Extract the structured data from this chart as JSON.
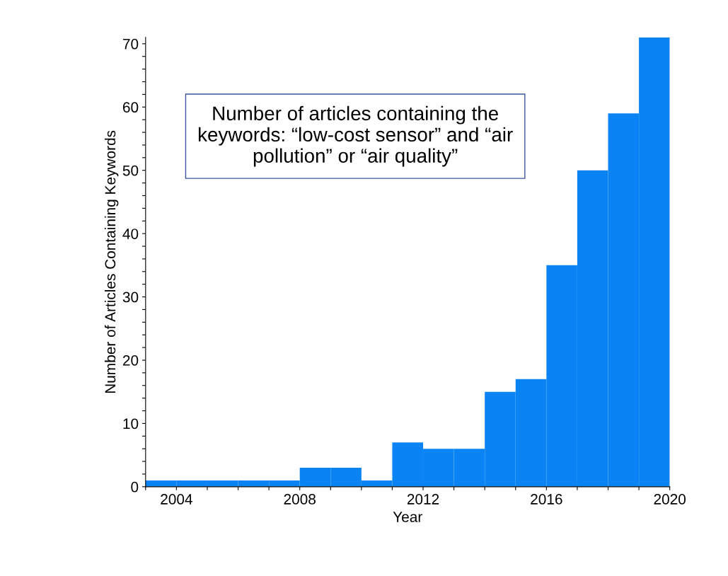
{
  "chart_data": {
    "type": "histogram",
    "bins": [
      2003,
      2004,
      2005,
      2006,
      2007,
      2008,
      2009,
      2010,
      2011,
      2012,
      2013,
      2014,
      2015,
      2016,
      2017,
      2018,
      2019,
      2020
    ],
    "values": [
      1,
      1,
      1,
      1,
      1,
      3,
      3,
      1,
      7,
      6,
      6,
      15,
      17,
      35,
      50,
      59,
      71
    ],
    "color": "#0a84f5",
    "xlabel": "Year",
    "ylabel": "Number of Articles Containing Keywords",
    "xlim": [
      2003,
      2020
    ],
    "ylim": [
      0,
      71
    ],
    "xticks": [
      {
        "value": 2003,
        "label": null
      },
      2004,
      {
        "value": 2005,
        "label": null
      },
      {
        "value": 2006,
        "label": null
      },
      {
        "value": 2007,
        "label": null
      },
      2008,
      {
        "value": 2009,
        "label": null
      },
      {
        "value": 2010,
        "label": null
      },
      {
        "value": 2011,
        "label": null
      },
      2012,
      {
        "value": 2013,
        "label": null
      },
      {
        "value": 2014,
        "label": null
      },
      {
        "value": 2015,
        "label": null
      },
      2016,
      {
        "value": 2017,
        "label": null
      },
      {
        "value": 2018,
        "label": null
      },
      {
        "value": 2019,
        "label": null
      },
      2020
    ],
    "yticks": [
      0,
      {
        "value": 2,
        "label": null
      },
      {
        "value": 4,
        "label": null
      },
      {
        "value": 6,
        "label": null
      },
      {
        "value": 8,
        "label": null
      },
      10,
      {
        "value": 12,
        "label": null
      },
      {
        "value": 14,
        "label": null
      },
      {
        "value": 16,
        "label": null
      },
      {
        "value": 18,
        "label": null
      },
      20,
      {
        "value": 22,
        "label": null
      },
      {
        "value": 24,
        "label": null
      },
      {
        "value": 26,
        "label": null
      },
      {
        "value": 28,
        "label": null
      },
      30,
      {
        "value": 32,
        "label": null
      },
      {
        "value": 34,
        "label": null
      },
      {
        "value": 36,
        "label": null
      },
      {
        "value": 38,
        "label": null
      },
      40,
      {
        "value": 42,
        "label": null
      },
      {
        "value": 44,
        "label": null
      },
      {
        "value": 46,
        "label": null
      },
      {
        "value": 48,
        "label": null
      },
      50,
      {
        "value": 52,
        "label": null
      },
      {
        "value": 54,
        "label": null
      },
      {
        "value": 56,
        "label": null
      },
      {
        "value": 58,
        "label": null
      },
      60,
      {
        "value": 62,
        "label": null
      },
      {
        "value": 64,
        "label": null
      },
      {
        "value": 66,
        "label": null
      },
      {
        "value": 68,
        "label": null
      },
      70
    ],
    "grid": false,
    "legend": false,
    "annotations": [
      "Number of articles containing the keywords: “low-cost sensor” and “air pollution” or “air quality”"
    ]
  }
}
